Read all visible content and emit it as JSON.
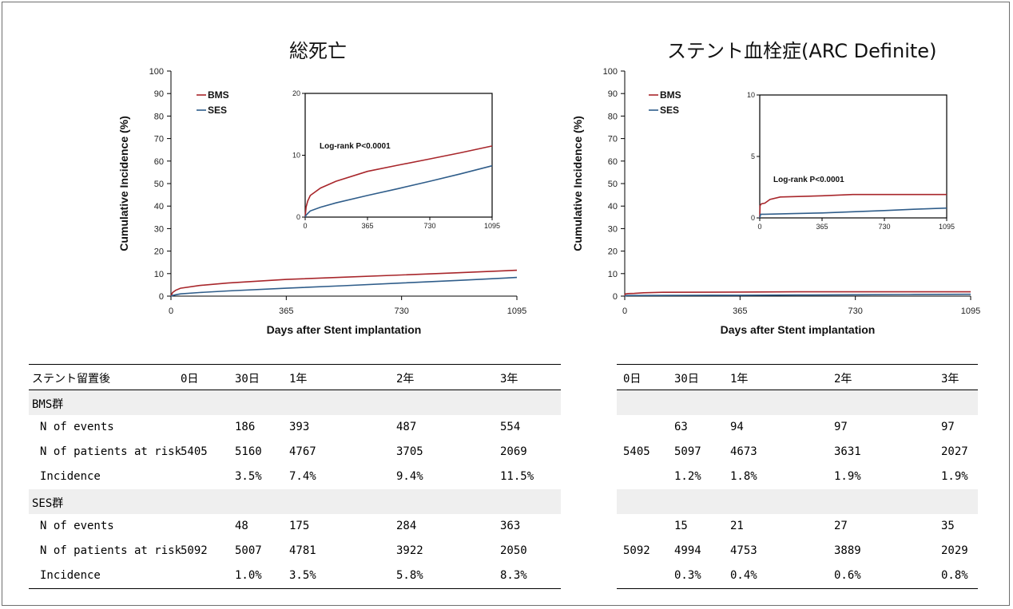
{
  "chart_data": [
    {
      "type": "line",
      "title": "総死亡",
      "xlabel": "Days after Stent implantation",
      "ylabel": "Cumulative Incidence (%)",
      "xlim": [
        0,
        1095
      ],
      "ylim": [
        0,
        100
      ],
      "xticks": [
        0,
        365,
        730,
        1095
      ],
      "yticks": [
        0,
        10,
        20,
        30,
        40,
        50,
        60,
        70,
        80,
        90,
        100
      ],
      "legend": "top-left",
      "series": [
        {
          "name": "BMS",
          "color": "#a8262b",
          "x": [
            0,
            5,
            15,
            30,
            90,
            180,
            365,
            545,
            730,
            910,
            1095
          ],
          "y": [
            0,
            1.6,
            2.6,
            3.5,
            4.7,
            5.8,
            7.4,
            8.4,
            9.4,
            10.4,
            11.5
          ]
        },
        {
          "name": "SES",
          "color": "#2f5d8a",
          "x": [
            0,
            5,
            15,
            30,
            90,
            180,
            365,
            545,
            730,
            910,
            1095
          ],
          "y": [
            0,
            0.3,
            0.6,
            1.0,
            1.6,
            2.3,
            3.5,
            4.6,
            5.8,
            7.0,
            8.3
          ]
        }
      ],
      "inset": {
        "xlim": [
          0,
          1095
        ],
        "ylim": [
          0,
          20
        ],
        "xticks": [
          0,
          365,
          730,
          1095
        ],
        "yticks": [
          0,
          10,
          20
        ],
        "annotation": "Log-rank P<0.0001"
      }
    },
    {
      "type": "line",
      "title": "ステント血栓症(ARC Definite)",
      "xlabel": "Days after Stent implantation",
      "ylabel": "Cumulative Incidence (%)",
      "xlim": [
        0,
        1095
      ],
      "ylim": [
        0,
        100
      ],
      "xticks": [
        0,
        365,
        730,
        1095
      ],
      "yticks": [
        0,
        10,
        20,
        30,
        40,
        50,
        60,
        70,
        80,
        90,
        100
      ],
      "legend": "top-left",
      "series": [
        {
          "name": "BMS",
          "color": "#a8262b",
          "x": [
            0,
            2,
            10,
            30,
            60,
            120,
            365,
            545,
            730,
            1095
          ],
          "y": [
            0,
            1.0,
            1.15,
            1.2,
            1.5,
            1.7,
            1.8,
            1.9,
            1.9,
            1.9
          ]
        },
        {
          "name": "SES",
          "color": "#2f5d8a",
          "x": [
            0,
            5,
            30,
            200,
            365,
            545,
            730,
            900,
            1095
          ],
          "y": [
            0,
            0.3,
            0.3,
            0.35,
            0.4,
            0.5,
            0.6,
            0.7,
            0.8
          ]
        }
      ],
      "inset": {
        "xlim": [
          0,
          1095
        ],
        "ylim": [
          0,
          10
        ],
        "xticks": [
          0,
          365,
          730,
          1095
        ],
        "yticks": [
          0,
          5,
          10
        ],
        "annotation": "Log-rank P<0.0001"
      }
    }
  ],
  "tables": [
    {
      "header": [
        "ステント留置後",
        "0日",
        "30日",
        "1年",
        "2年",
        "3年"
      ],
      "rows": [
        {
          "group": true,
          "cells": [
            "BMS群",
            "",
            "",
            "",
            "",
            ""
          ]
        },
        {
          "cells": [
            "N of events",
            "",
            "186",
            "393",
            "487",
            "554"
          ]
        },
        {
          "cells": [
            "N of patients at risk",
            "5405",
            "5160",
            "4767",
            "3705",
            "2069"
          ]
        },
        {
          "cells": [
            "Incidence",
            "",
            "3.5%",
            "7.4%",
            "9.4%",
            "11.5%"
          ]
        },
        {
          "group": true,
          "cells": [
            "SES群",
            "",
            "",
            "",
            "",
            ""
          ]
        },
        {
          "cells": [
            "N of events",
            "",
            "48",
            "175",
            "284",
            "363"
          ]
        },
        {
          "cells": [
            "N of patients at risk",
            "5092",
            "5007",
            "4781",
            "3922",
            "2050"
          ]
        },
        {
          "cells": [
            "Incidence",
            "",
            "1.0%",
            "3.5%",
            "5.8%",
            "8.3%"
          ]
        }
      ]
    },
    {
      "header": [
        "0日",
        "30日",
        "1年",
        "2年",
        "3年"
      ],
      "rows": [
        {
          "group": true,
          "cells": [
            "",
            "",
            "",
            "",
            ""
          ]
        },
        {
          "cells": [
            "",
            "63",
            "94",
            "97",
            "97"
          ]
        },
        {
          "cells": [
            "5405",
            "5097",
            "4673",
            "3631",
            "2027"
          ]
        },
        {
          "cells": [
            "",
            "1.2%",
            "1.8%",
            "1.9%",
            "1.9%"
          ]
        },
        {
          "group": true,
          "cells": [
            "",
            "",
            "",
            "",
            ""
          ]
        },
        {
          "cells": [
            "",
            "15",
            "21",
            "27",
            "35"
          ]
        },
        {
          "cells": [
            "5092",
            "4994",
            "4753",
            "3889",
            "2029"
          ]
        },
        {
          "cells": [
            "",
            "0.3%",
            "0.4%",
            "0.6%",
            "0.8%"
          ]
        }
      ]
    }
  ]
}
